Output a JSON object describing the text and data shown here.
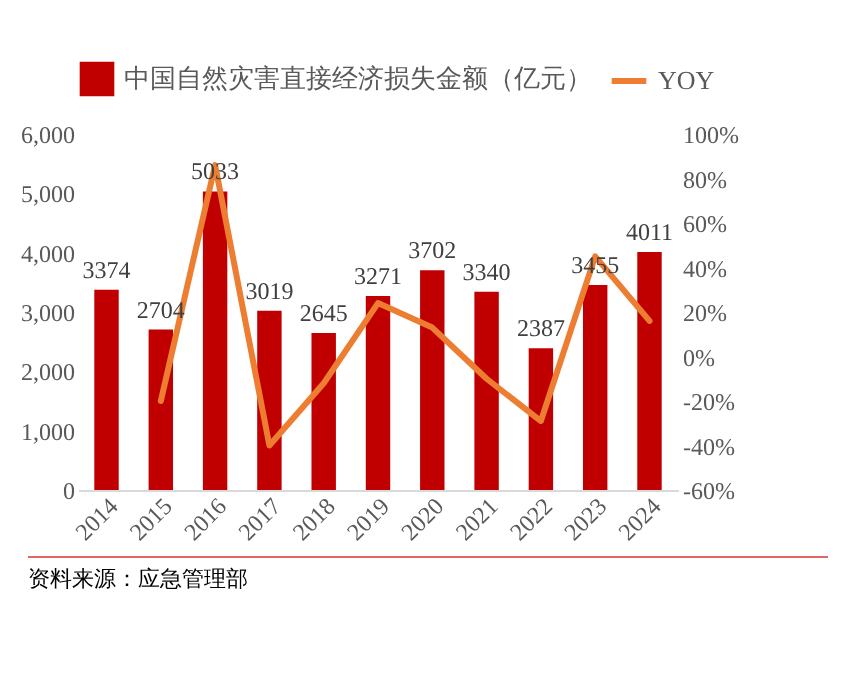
{
  "chart_data": {
    "type": "bar",
    "categories": [
      "2014",
      "2015",
      "2016",
      "2017",
      "2018",
      "2019",
      "2020",
      "2021",
      "2022",
      "2023",
      "2024"
    ],
    "series": [
      {
        "name": "中国自然灾害直接经济损失金额（亿元）",
        "color": "#c00000",
        "values": [
          3374,
          2704,
          5033,
          3019,
          2645,
          3271,
          3702,
          3340,
          2387,
          3455,
          4011
        ],
        "value_labels": [
          "3374",
          "2704",
          "5033",
          "3019",
          "2645",
          "3271",
          "3702",
          "3340",
          "2387",
          "3455",
          "4011"
        ]
      },
      {
        "name": "YOY",
        "type": "line",
        "axis": "y2",
        "color": "#ed7d31",
        "values": [
          null,
          -20,
          86,
          -40,
          -12,
          24,
          13,
          -10,
          -29,
          45,
          16
        ]
      }
    ],
    "ylim": [
      0,
      6000
    ],
    "yticks": [
      {
        "value": 0,
        "label": "0"
      },
      {
        "value": 1000,
        "label": "1,000"
      },
      {
        "value": 2000,
        "label": "2,000"
      },
      {
        "value": 3000,
        "label": "3,000"
      },
      {
        "value": 4000,
        "label": "4,000"
      },
      {
        "value": 5000,
        "label": "5,000"
      },
      {
        "value": 6000,
        "label": "6,000"
      }
    ],
    "y2lim": [
      -60,
      100
    ],
    "y2ticks": [
      {
        "value": -60,
        "label": "-60%"
      },
      {
        "value": -40,
        "label": "-40%"
      },
      {
        "value": -20,
        "label": "-20%"
      },
      {
        "value": 0,
        "label": "0%"
      },
      {
        "value": 20,
        "label": "20%"
      },
      {
        "value": 40,
        "label": "40%"
      },
      {
        "value": 60,
        "label": "60%"
      },
      {
        "value": 80,
        "label": "80%"
      },
      {
        "value": 100,
        "label": "100%"
      }
    ],
    "legend": "top",
    "grid": false,
    "annotations": [
      "资料来源：应急管理部"
    ]
  }
}
